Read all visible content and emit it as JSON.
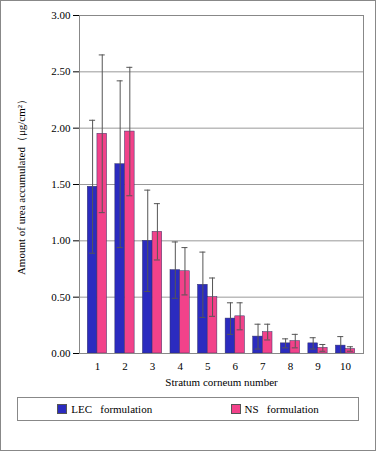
{
  "chart_data": {
    "type": "bar",
    "x_label": "Stratum corneum number",
    "y_label": "Amount of urea accumulated（μg/cm²）",
    "categories": [
      1,
      2,
      3,
      4,
      5,
      6,
      7,
      8,
      9,
      10
    ],
    "series": [
      {
        "name": "LEC   formulation",
        "color": "#2b2bbf",
        "values": [
          1.48,
          1.68,
          1.0,
          0.74,
          0.61,
          0.31,
          0.15,
          0.09,
          0.09,
          0.07
        ],
        "errors": [
          0.59,
          0.74,
          0.45,
          0.25,
          0.29,
          0.14,
          0.11,
          0.04,
          0.05,
          0.08
        ]
      },
      {
        "name": "NS   formulation",
        "color": "#f2428a",
        "values": [
          1.95,
          1.97,
          1.08,
          0.73,
          0.5,
          0.33,
          0.19,
          0.11,
          0.05,
          0.04
        ],
        "errors": [
          0.7,
          0.57,
          0.25,
          0.21,
          0.17,
          0.12,
          0.07,
          0.06,
          0.03,
          0.02
        ]
      }
    ],
    "ylim": [
      0,
      3
    ],
    "yticks": [
      {
        "value": 0,
        "label": "0.00"
      },
      {
        "value": 0.5,
        "label": "0.50"
      },
      {
        "value": 1,
        "label": "1.00"
      },
      {
        "value": 1.5,
        "label": "1.50"
      },
      {
        "value": 2,
        "label": "2.00"
      },
      {
        "value": 2.5,
        "label": "2.50"
      },
      {
        "value": 3,
        "label": "3.00"
      }
    ],
    "grid": true,
    "legend": "bottom"
  }
}
